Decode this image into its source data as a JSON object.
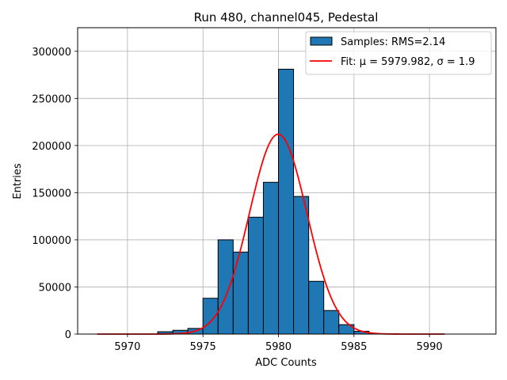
{
  "chart_data": {
    "type": "bar",
    "title": "Run 480, channel045, Pedestal",
    "xlabel": "ADC Counts",
    "ylabel": "Entries",
    "xlim": [
      5966.7,
      5994.4
    ],
    "ylim": [
      0,
      325000
    ],
    "xticks": [
      5970,
      5975,
      5980,
      5985,
      5990
    ],
    "yticks": [
      0,
      50000,
      100000,
      150000,
      200000,
      250000,
      300000
    ],
    "grid": true,
    "legend_position": "top-right",
    "histogram": {
      "name": "Samples: RMS=2.14",
      "color": "#1f77b4",
      "bin_width": 1,
      "bin_starts": [
        5972,
        5973,
        5974,
        5975,
        5976,
        5977,
        5978,
        5979,
        5980,
        5981,
        5982,
        5983,
        5984,
        5985
      ],
      "values": [
        2500,
        4000,
        6000,
        38000,
        100000,
        87000,
        124000,
        161000,
        281000,
        146000,
        56000,
        25000,
        10000,
        3000
      ]
    },
    "fit": {
      "name": "Fit: μ = 5979.982, σ = 1.9",
      "color": "#ff0000",
      "mu": 5979.982,
      "sigma": 1.9,
      "amplitude": 212000,
      "x_range": [
        5968,
        5991
      ]
    }
  }
}
